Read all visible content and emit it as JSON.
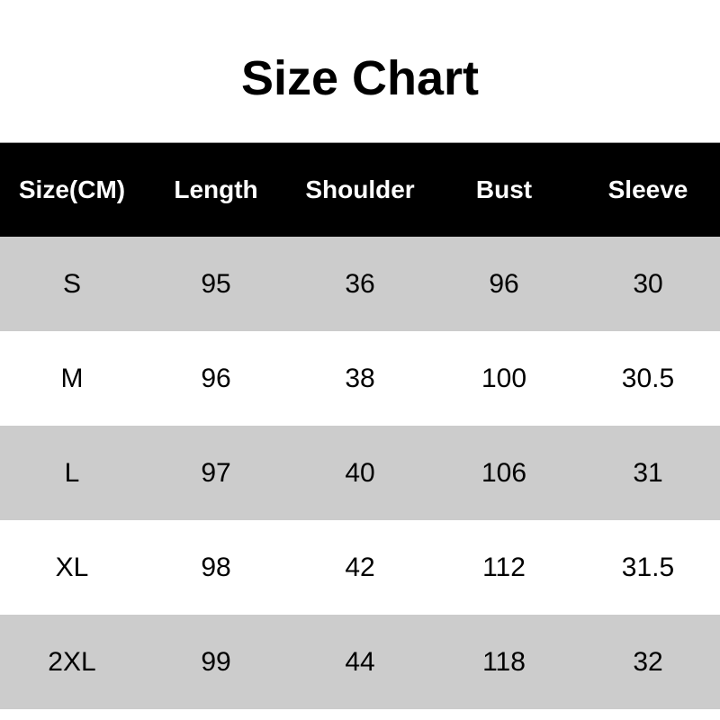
{
  "title": "Size Chart",
  "table": {
    "headers": [
      "Size(CM)",
      "Length",
      "Shoulder",
      "Bust",
      "Sleeve"
    ],
    "rows": [
      [
        "S",
        "95",
        "36",
        "96",
        "30"
      ],
      [
        "M",
        "96",
        "38",
        "100",
        "30.5"
      ],
      [
        "L",
        "97",
        "40",
        "106",
        "31"
      ],
      [
        "XL",
        "98",
        "42",
        "112",
        "31.5"
      ],
      [
        "2XL",
        "99",
        "44",
        "118",
        "32"
      ]
    ]
  },
  "colors": {
    "header_bg": "#000000",
    "stripe": "#cccccc",
    "accent_corner": "#2a9a2a"
  }
}
